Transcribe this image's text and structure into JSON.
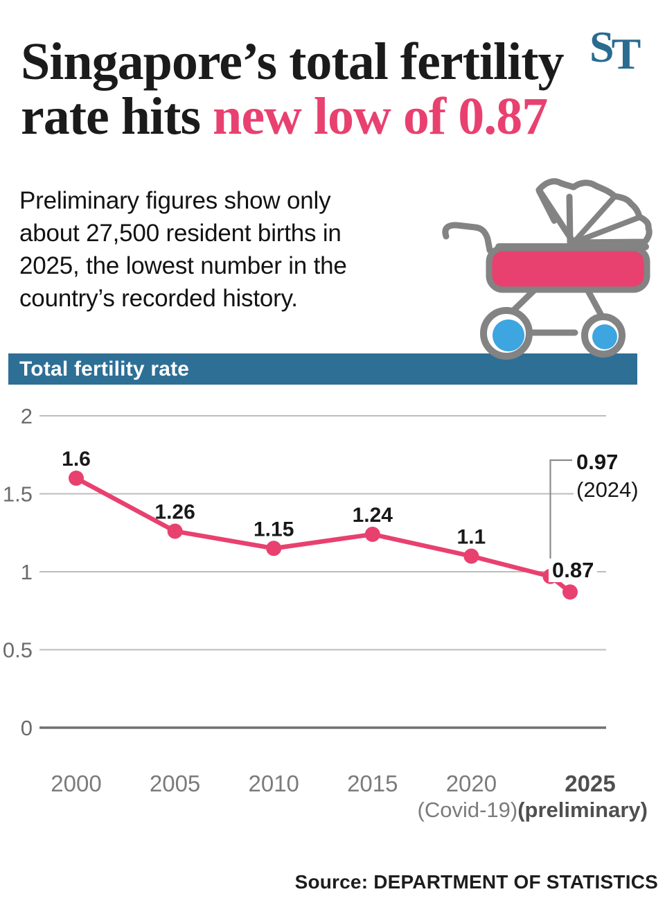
{
  "header": {
    "title_line1": "Singapore’s total fertility",
    "title_line2_black": "rate hits ",
    "title_line2_pink": "new low of 0.87",
    "logo_s": "S",
    "logo_t": "T",
    "subtitle_lines": [
      "Preliminary figures show only",
      "about 27,500 resident births in",
      "2025, the lowest number in the",
      "country’s recorded history."
    ]
  },
  "section": {
    "label": "Total fertility rate"
  },
  "icons": {
    "stroller": "baby-stroller-icon",
    "logo": "straits-times-logo"
  },
  "colors": {
    "accent_pink": "#e8416f",
    "bar_teal": "#2e6f96",
    "logo_teal": "#2a6b90",
    "wheel_blue": "#3da5e0",
    "stroller_gray": "#838383",
    "grid_gray": "#bcbcbc",
    "axis_gray": "#707070",
    "callout_gray": "#8c8c8c"
  },
  "chart_data": {
    "type": "line",
    "title": "Total fertility rate",
    "series": [
      {
        "name": "Total fertility rate",
        "color": "#e8416f"
      }
    ],
    "points": [
      {
        "year": 2000,
        "value": 1.6,
        "label": "1.6"
      },
      {
        "year": 2005,
        "value": 1.26,
        "label": "1.26"
      },
      {
        "year": 2010,
        "value": 1.15,
        "label": "1.15"
      },
      {
        "year": 2015,
        "value": 1.24,
        "label": "1.24"
      },
      {
        "year": 2020,
        "value": 1.1,
        "label": "1.1"
      },
      {
        "year": 2024,
        "value": 0.97,
        "label": null,
        "callout": true
      },
      {
        "year": 2025,
        "value": 0.87,
        "label": null
      }
    ],
    "yticks": [
      {
        "value": 0,
        "label": "0"
      },
      {
        "value": 0.5,
        "label": "0.5"
      },
      {
        "value": 1,
        "label": "1"
      },
      {
        "value": 1.5,
        "label": "1.5"
      },
      {
        "value": 2,
        "label": "2"
      }
    ],
    "xticks": [
      {
        "year": 2000,
        "label": "2000",
        "bold": false,
        "dx": 0
      },
      {
        "year": 2005,
        "label": "2005",
        "bold": false,
        "dx": 0
      },
      {
        "year": 2010,
        "label": "2010",
        "bold": false,
        "dx": 0
      },
      {
        "year": 2015,
        "label": "2015",
        "bold": false,
        "dx": 0
      },
      {
        "year": 2020,
        "label": "2020",
        "bold": false,
        "dx": 0
      },
      {
        "year": 2025,
        "label": "2025",
        "bold": true,
        "dx": 29
      }
    ],
    "x_subnotes": [
      {
        "text": "(Covid-19)",
        "bold": false
      },
      {
        "text": "(preliminary)",
        "bold": true
      }
    ],
    "annotations": {
      "value_2024": "0.97",
      "year_2024": "(2024)",
      "value_2025": "0.87"
    },
    "xlim": [
      2000,
      2025
    ],
    "ylim": [
      0,
      2
    ],
    "grid": true,
    "legend": false
  },
  "source": {
    "label": "Source: DEPARTMENT OF STATISTICS"
  }
}
